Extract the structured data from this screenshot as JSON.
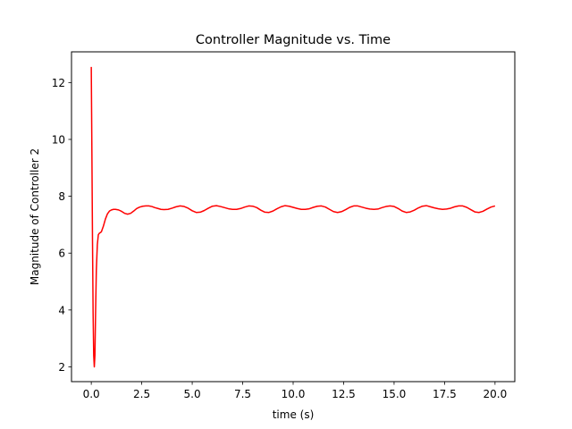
{
  "chart_data": {
    "type": "line",
    "title": "Controller Magnitude vs. Time",
    "xlabel": "time (s)",
    "ylabel": "Magnitude of Controller 2",
    "xlim": [
      -0.98,
      20.98
    ],
    "ylim": [
      1.48,
      13.08
    ],
    "xticks": [
      0.0,
      2.5,
      5.0,
      7.5,
      10.0,
      12.5,
      15.0,
      17.5,
      20.0
    ],
    "xtick_labels": [
      "0.0",
      "2.5",
      "5.0",
      "7.5",
      "10.0",
      "12.5",
      "15.0",
      "17.5",
      "20.0"
    ],
    "yticks": [
      2,
      4,
      6,
      8,
      10,
      12
    ],
    "ytick_labels": [
      "2",
      "4",
      "6",
      "8",
      "10",
      "12"
    ],
    "grid": false,
    "series": [
      {
        "color": "#ff0000",
        "x": [
          0.0,
          0.03,
          0.06,
          0.09,
          0.12,
          0.15,
          0.18,
          0.21,
          0.25,
          0.3,
          0.35,
          0.4,
          0.5,
          0.6,
          0.7,
          0.8,
          0.9,
          1.0,
          1.1,
          1.2,
          1.35,
          1.5,
          1.65,
          1.8,
          1.95,
          2.1,
          2.25,
          2.4,
          2.55,
          2.7,
          2.85,
          3.0,
          3.15,
          3.3,
          3.45,
          3.6,
          3.8,
          4.0,
          4.2,
          4.4,
          4.6,
          4.8,
          5.0,
          5.2,
          5.4,
          5.6,
          5.8,
          6.0,
          6.2,
          6.4,
          6.6,
          6.8,
          7.0,
          7.2,
          7.4,
          7.6,
          7.8,
          8.0,
          8.2,
          8.4,
          8.6,
          8.8,
          9.0,
          9.2,
          9.4,
          9.6,
          9.8,
          10.0,
          10.2,
          10.4,
          10.6,
          10.8,
          11.0,
          11.2,
          11.4,
          11.6,
          11.8,
          12.0,
          12.2,
          12.4,
          12.6,
          12.8,
          13.0,
          13.2,
          13.4,
          13.6,
          13.8,
          14.0,
          14.2,
          14.4,
          14.6,
          14.8,
          15.0,
          15.2,
          15.4,
          15.6,
          15.8,
          16.0,
          16.2,
          16.4,
          16.6,
          16.8,
          17.0,
          17.2,
          17.4,
          17.6,
          17.8,
          18.0,
          18.2,
          18.4,
          18.6,
          18.8,
          19.0,
          19.2,
          19.4,
          19.6,
          19.8,
          20.0
        ],
        "y": [
          12.55,
          9.6,
          6.5,
          3.9,
          2.4,
          2.0,
          2.4,
          3.8,
          5.4,
          6.3,
          6.65,
          6.7,
          6.75,
          6.95,
          7.2,
          7.38,
          7.48,
          7.52,
          7.54,
          7.54,
          7.52,
          7.47,
          7.4,
          7.37,
          7.4,
          7.48,
          7.57,
          7.62,
          7.65,
          7.66,
          7.66,
          7.64,
          7.6,
          7.57,
          7.54,
          7.53,
          7.54,
          7.58,
          7.63,
          7.66,
          7.64,
          7.58,
          7.49,
          7.43,
          7.44,
          7.5,
          7.58,
          7.65,
          7.67,
          7.64,
          7.6,
          7.56,
          7.54,
          7.54,
          7.57,
          7.62,
          7.66,
          7.65,
          7.6,
          7.51,
          7.44,
          7.43,
          7.48,
          7.56,
          7.63,
          7.67,
          7.65,
          7.61,
          7.57,
          7.54,
          7.54,
          7.56,
          7.61,
          7.65,
          7.66,
          7.62,
          7.54,
          7.46,
          7.43,
          7.46,
          7.53,
          7.61,
          7.66,
          7.66,
          7.62,
          7.58,
          7.55,
          7.54,
          7.55,
          7.6,
          7.64,
          7.66,
          7.64,
          7.57,
          7.48,
          7.43,
          7.45,
          7.51,
          7.59,
          7.65,
          7.67,
          7.63,
          7.59,
          7.56,
          7.54,
          7.55,
          7.58,
          7.63,
          7.66,
          7.66,
          7.61,
          7.53,
          7.45,
          7.43,
          7.47,
          7.55,
          7.62,
          7.66
        ]
      }
    ]
  }
}
